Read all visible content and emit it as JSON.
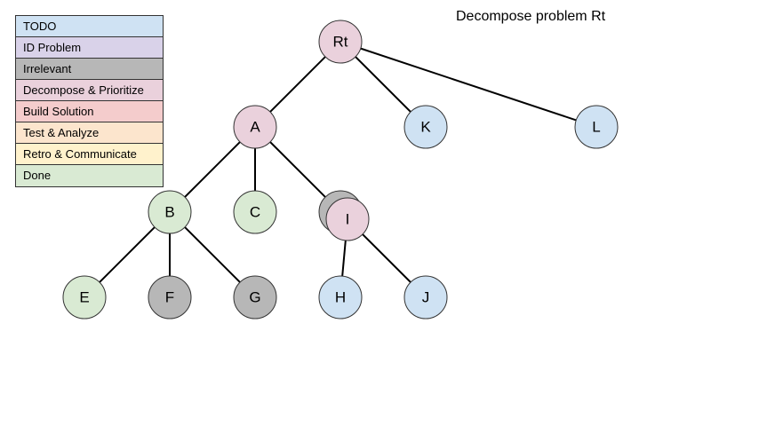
{
  "title": "Decompose problem Rt",
  "legend": [
    {
      "key": "todo",
      "label": "TODO",
      "color": "#cfe2f3"
    },
    {
      "key": "id",
      "label": "ID Problem",
      "color": "#d9d2e9"
    },
    {
      "key": "irrelevant",
      "label": "Irrelevant",
      "color": "#b7b7b7"
    },
    {
      "key": "decompose",
      "label": "Decompose & Prioritize",
      "color": "#ead1dc"
    },
    {
      "key": "build",
      "label": "Build Solution",
      "color": "#f4cccc"
    },
    {
      "key": "test",
      "label": "Test & Analyze",
      "color": "#fce5cd"
    },
    {
      "key": "retro",
      "label": "Retro & Communicate",
      "color": "#fff2cc"
    },
    {
      "key": "done",
      "label": "Done",
      "color": "#d9ead3"
    }
  ],
  "nodes": [
    {
      "id": "Rt",
      "label": "Rt",
      "status": "decompose"
    },
    {
      "id": "A",
      "label": "A",
      "status": "decompose"
    },
    {
      "id": "K",
      "label": "K",
      "status": "todo"
    },
    {
      "id": "L",
      "label": "L",
      "status": "todo"
    },
    {
      "id": "B",
      "label": "B",
      "status": "done"
    },
    {
      "id": "C",
      "label": "C",
      "status": "done"
    },
    {
      "id": "D",
      "label": "",
      "status": "irrelevant"
    },
    {
      "id": "I",
      "label": "I",
      "status": "decompose"
    },
    {
      "id": "E",
      "label": "E",
      "status": "done"
    },
    {
      "id": "F",
      "label": "F",
      "status": "irrelevant"
    },
    {
      "id": "G",
      "label": "G",
      "status": "irrelevant"
    },
    {
      "id": "H",
      "label": "H",
      "status": "todo"
    },
    {
      "id": "J",
      "label": "J",
      "status": "todo"
    }
  ],
  "edges": [
    [
      "Rt",
      "A"
    ],
    [
      "Rt",
      "K"
    ],
    [
      "Rt",
      "L"
    ],
    [
      "A",
      "B"
    ],
    [
      "A",
      "C"
    ],
    [
      "A",
      "D"
    ],
    [
      "B",
      "E"
    ],
    [
      "B",
      "F"
    ],
    [
      "B",
      "G"
    ],
    [
      "I",
      "H"
    ],
    [
      "I",
      "J"
    ]
  ]
}
